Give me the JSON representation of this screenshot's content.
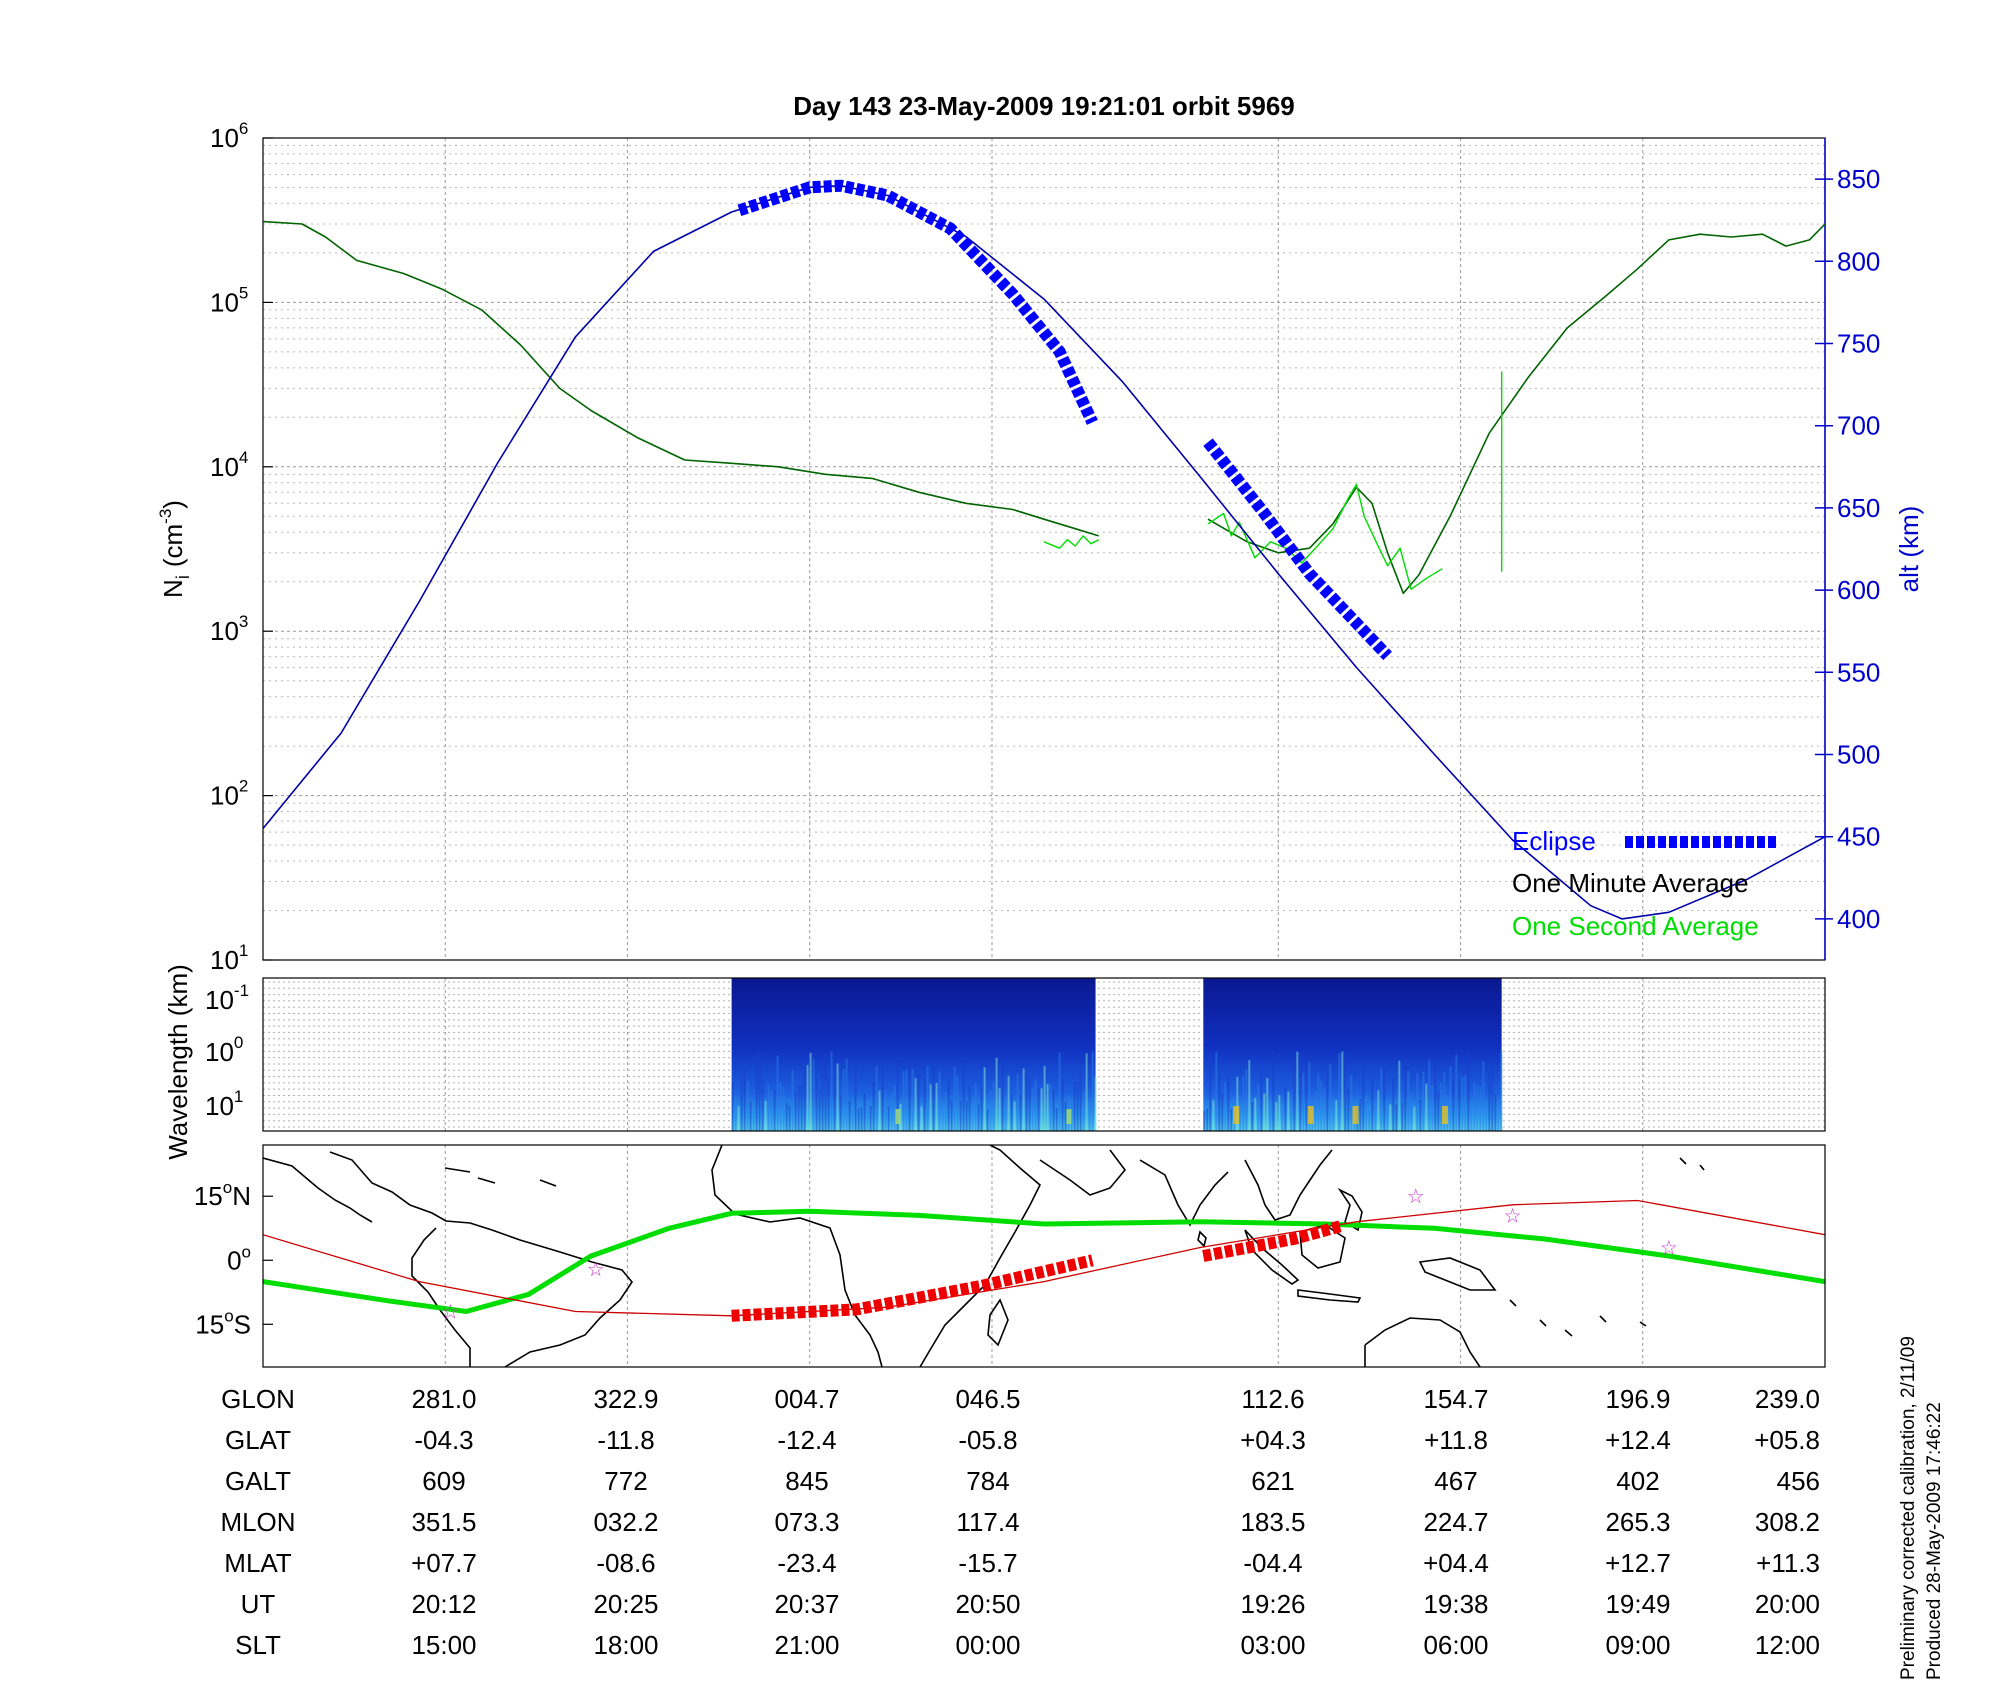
{
  "chart_data": [
    {
      "type": "line",
      "title": "Day 143  23-May-2009 19:21:01   orbit 5969",
      "ylabel_main": "N",
      "ylabel_sub": "i",
      "ylabel_unit_pre": "(cm",
      "ylabel_unit_exp": "-3",
      "ylabel_unit_post": ")",
      "y_scale": "log",
      "ylim": [
        10,
        1000000
      ],
      "y_ticks": [
        {
          "base": "10",
          "exp": "1",
          "value": 10
        },
        {
          "base": "10",
          "exp": "2",
          "value": 100
        },
        {
          "base": "10",
          "exp": "3",
          "value": 1000
        },
        {
          "base": "10",
          "exp": "4",
          "value": 10000
        },
        {
          "base": "10",
          "exp": "5",
          "value": 100000
        },
        {
          "base": "10",
          "exp": "6",
          "value": 1000000
        }
      ],
      "y2label": "alt (km)",
      "y2lim": [
        375,
        875
      ],
      "y2_ticks": [
        "400",
        "450",
        "500",
        "550",
        "600",
        "650",
        "700",
        "750",
        "800",
        "850"
      ],
      "y2_color": "#0000cc",
      "xlim": [
        0,
        1
      ],
      "x_gridlines": [
        0.1167,
        0.2333,
        0.35,
        0.4667,
        0.65,
        0.7667,
        0.8833
      ],
      "grid": true,
      "legend_position": "bottom-right",
      "legend": [
        {
          "label": "Eclipse",
          "color": "#0000ff"
        },
        {
          "label": "One Minute Average",
          "color": "#000000"
        },
        {
          "label": "One Second Average",
          "color": "#00dd00"
        }
      ],
      "series": [
        {
          "name": "One Minute Average",
          "color": "#006400",
          "x": [
            0.0,
            0.025,
            0.04,
            0.06,
            0.09,
            0.115,
            0.14,
            0.165,
            0.19,
            0.21,
            0.24,
            0.27,
            0.3,
            0.33,
            0.36,
            0.39,
            0.42,
            0.45,
            0.48,
            0.5,
            0.52,
            0.535
          ],
          "y": [
            310000,
            300000,
            250000,
            180000,
            150000,
            120000,
            90000,
            55000,
            30000,
            22000,
            15000,
            11000,
            10500,
            10000,
            9000,
            8500,
            7000,
            6000,
            5500,
            4800,
            4200,
            3800
          ]
        },
        {
          "name": "One Minute Average",
          "color": "#006400",
          "x": [
            0.605,
            0.63,
            0.65,
            0.67,
            0.685,
            0.7,
            0.71,
            0.72,
            0.73,
            0.74,
            0.76,
            0.785,
            0.81,
            0.835,
            0.86,
            0.88,
            0.9,
            0.92,
            0.94,
            0.96,
            0.975,
            0.99,
            1.0
          ],
          "y": [
            4800,
            3500,
            3000,
            3200,
            4500,
            7500,
            6000,
            3000,
            1700,
            2200,
            5000,
            16000,
            35000,
            70000,
            110000,
            160000,
            240000,
            260000,
            250000,
            260000,
            220000,
            240000,
            300000
          ]
        },
        {
          "name": "One Second Average",
          "color": "#00dd00",
          "x": [
            0.5,
            0.51,
            0.515,
            0.52,
            0.525,
            0.53,
            0.535
          ],
          "y": [
            3500,
            3200,
            3600,
            3300,
            3800,
            3400,
            3600
          ]
        },
        {
          "name": "One Second Average",
          "color": "#00dd00",
          "x": [
            0.605,
            0.615,
            0.62,
            0.625,
            0.635,
            0.645,
            0.655,
            0.665,
            0.675,
            0.685,
            0.695,
            0.7,
            0.705,
            0.712,
            0.72,
            0.728,
            0.735,
            0.745,
            0.755
          ],
          "y": [
            4500,
            5200,
            3800,
            4600,
            2800,
            3500,
            3200,
            2600,
            3300,
            4200,
            6500,
            7800,
            5000,
            3600,
            2500,
            3200,
            1800,
            2100,
            2400
          ]
        },
        {
          "name": "One Second Average",
          "color": "#00dd00",
          "x": [
            0.793,
            0.793
          ],
          "y": [
            38000,
            2300
          ]
        },
        {
          "name": "Altitude",
          "axis": "y2",
          "color": "#0000aa",
          "x": [
            0.0,
            0.05,
            0.1,
            0.15,
            0.2,
            0.25,
            0.3,
            0.35,
            0.37,
            0.4,
            0.45,
            0.5,
            0.55,
            0.6,
            0.65,
            0.7,
            0.75,
            0.8,
            0.85,
            0.87,
            0.9,
            0.95,
            1.0
          ],
          "y": [
            455,
            513,
            593,
            677,
            754,
            806,
            830,
            845,
            846,
            840,
            815,
            777,
            727,
            669,
            610,
            553,
            500,
            448,
            408,
            400,
            404,
            424,
            450
          ]
        },
        {
          "name": "Eclipse",
          "axis": "y2",
          "color": "#0000ff",
          "style": "dashed-thick",
          "x": [
            0.305,
            0.35,
            0.37,
            0.4,
            0.44,
            0.48,
            0.51,
            0.531
          ],
          "y": [
            831,
            845,
            846,
            840,
            820,
            780,
            745,
            702
          ]
        },
        {
          "name": "Eclipse",
          "axis": "y2",
          "color": "#0000ff",
          "style": "dashed-thick",
          "x": [
            0.605,
            0.64,
            0.67,
            0.7,
            0.72
          ],
          "y": [
            690,
            648,
            610,
            580,
            560
          ]
        }
      ]
    },
    {
      "type": "heatmap",
      "ylabel": "Wavelength (km)",
      "y_ticks": [
        {
          "base": "10",
          "exp": "-1"
        },
        {
          "base": "10",
          "exp": "0"
        },
        {
          "base": "10",
          "exp": "1"
        }
      ],
      "blocks": [
        {
          "x_start": 0.3,
          "x_end": 0.533
        },
        {
          "x_start": 0.602,
          "x_end": 0.793
        }
      ]
    },
    {
      "type": "line",
      "subtype": "map",
      "y_ticks": [
        {
          "deg": "15",
          "hemi": "N",
          "value": 15
        },
        {
          "deg": "0",
          "hemi": "",
          "value": 0
        },
        {
          "deg": "15",
          "hemi": "S",
          "value": -15
        }
      ],
      "ylim": [
        -25,
        27
      ],
      "series": [
        {
          "name": "Dip equator",
          "color": "#00dd00",
          "x": [
            0.0,
            0.08,
            0.13,
            0.17,
            0.21,
            0.26,
            0.3,
            0.35,
            0.42,
            0.5,
            0.6,
            0.68,
            0.75,
            0.82,
            0.9,
            1.0
          ],
          "y": [
            -5,
            -9.5,
            -12,
            -8,
            1,
            7.5,
            11,
            11.5,
            10.5,
            8.5,
            9,
            8.5,
            7.5,
            5,
            1,
            -5
          ]
        },
        {
          "name": "Orbit track",
          "color": "#cc0000",
          "x": [
            0.0,
            0.1,
            0.2,
            0.3,
            0.4,
            0.5,
            0.6,
            0.7,
            0.8,
            0.88,
            1.0
          ],
          "y": [
            6,
            -5,
            -12,
            -13,
            -11,
            -5,
            3,
            9,
            13,
            14,
            6
          ]
        },
        {
          "name": "Eclipse track",
          "color": "#ee0000",
          "style": "dashed-thick",
          "x": [
            0.3,
            0.38,
            0.46,
            0.531
          ],
          "y": [
            -13,
            -11.5,
            -6,
            0
          ]
        },
        {
          "name": "Eclipse track",
          "color": "#ee0000",
          "style": "dashed-thick",
          "x": [
            0.602,
            0.66,
            0.69
          ],
          "y": [
            1,
            5,
            8
          ]
        }
      ],
      "stars": [
        {
          "x": 0.12,
          "y": -12
        },
        {
          "x": 0.213,
          "y": -2
        },
        {
          "x": 0.738,
          "y": 15
        },
        {
          "x": 0.8,
          "y": 10.5
        },
        {
          "x": 0.9,
          "y": 3
        }
      ]
    }
  ],
  "table": {
    "rows": [
      {
        "label": "GLON",
        "values": [
          "281.0",
          "322.9",
          "004.7",
          "046.5",
          "112.6",
          "154.7",
          "196.9",
          "239.0"
        ]
      },
      {
        "label": "GLAT",
        "values": [
          "-04.3",
          "-11.8",
          "-12.4",
          "-05.8",
          "+04.3",
          "+11.8",
          "+12.4",
          "+05.8"
        ]
      },
      {
        "label": "GALT",
        "values": [
          "609",
          "772",
          "845",
          "784",
          "621",
          "467",
          "402",
          "456"
        ]
      },
      {
        "label": "MLON",
        "values": [
          "351.5",
          "032.2",
          "073.3",
          "117.4",
          "183.5",
          "224.7",
          "265.3",
          "308.2"
        ]
      },
      {
        "label": "MLAT",
        "values": [
          "+07.7",
          "-08.6",
          "-23.4",
          "-15.7",
          "-04.4",
          "+04.4",
          "+12.7",
          "+11.3"
        ]
      },
      {
        "label": "UT",
        "values": [
          "20:12",
          "20:25",
          "20:37",
          "20:50",
          "19:26",
          "19:38",
          "19:49",
          "20:00"
        ]
      },
      {
        "label": "SLT",
        "values": [
          "15:00",
          "18:00",
          "21:00",
          "00:00",
          "03:00",
          "06:00",
          "09:00",
          "12:00"
        ]
      }
    ]
  },
  "footer": {
    "line1": "Preliminary corrected calibration, 2/11/09",
    "line2": "Produced 28-May-2009 17:46:22"
  }
}
